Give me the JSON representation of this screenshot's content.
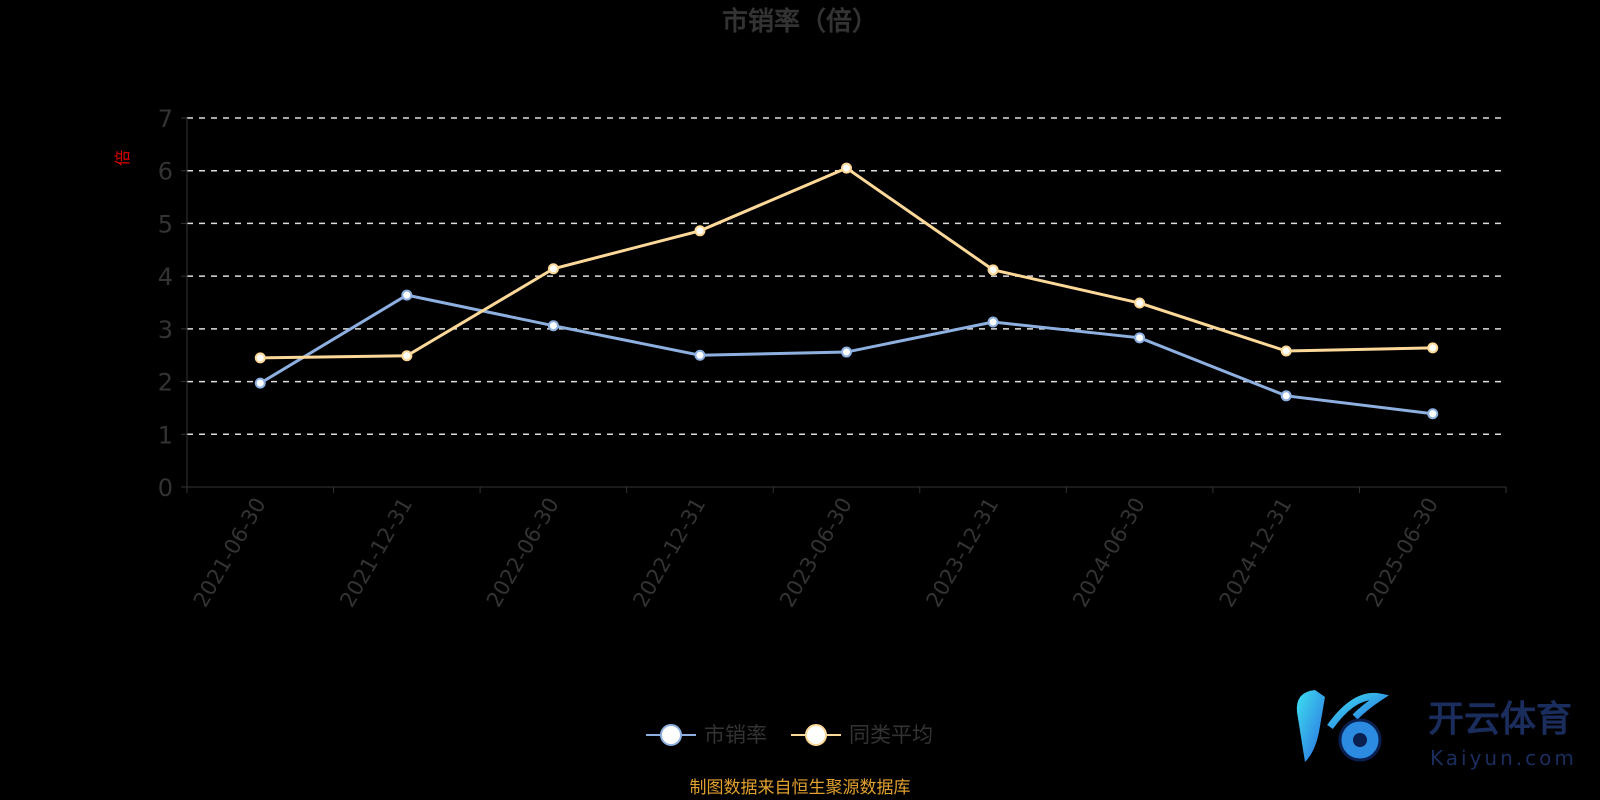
{
  "chart_data": {
    "type": "line",
    "title": "市销率（倍）",
    "ylabel": "倍",
    "xlabel": "",
    "ylim": [
      0,
      7
    ],
    "yticks": [
      0,
      1,
      2,
      3,
      4,
      5,
      6,
      7
    ],
    "grid": true,
    "legend_position": "bottom",
    "categories": [
      "2021-06-30",
      "2021-12-31",
      "2022-06-30",
      "2022-12-31",
      "2023-06-30",
      "2023-12-31",
      "2024-06-30",
      "2024-12-31",
      "2025-06-30"
    ],
    "series": [
      {
        "name": "市销率",
        "color": "#8eb0e0",
        "values": [
          1.97,
          3.64,
          3.06,
          2.5,
          2.56,
          3.13,
          2.83,
          1.73,
          1.39
        ]
      },
      {
        "name": "同类平均",
        "color": "#fcd899",
        "values": [
          2.45,
          2.49,
          4.14,
          4.86,
          6.05,
          4.12,
          3.49,
          2.58,
          2.64
        ]
      }
    ]
  },
  "source": "制图数据来自恒生聚源数据库",
  "watermark": {
    "title": "开云体育",
    "sub": "Kaiyun.com"
  }
}
